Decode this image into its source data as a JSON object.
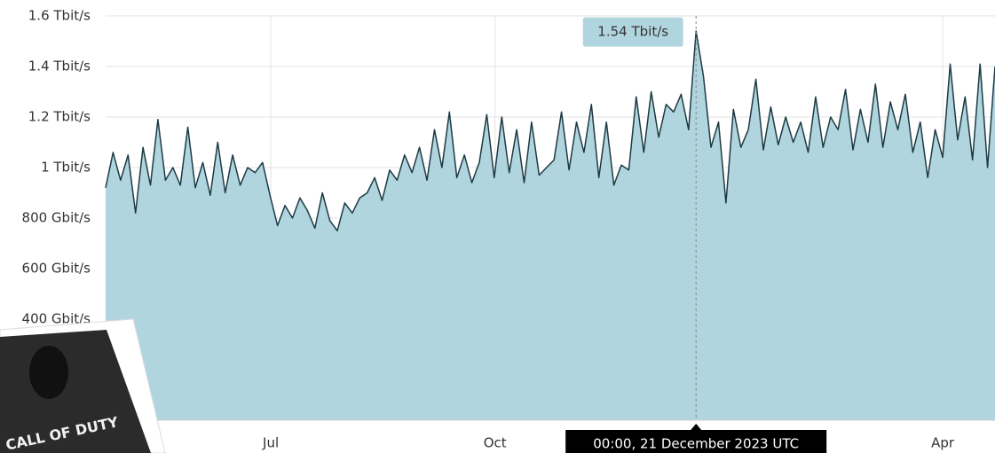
{
  "chart_data": {
    "type": "area",
    "badge": "CALL OF DUTY",
    "tooltip_date": "00:00, 21 December 2023 UTC",
    "series": [
      {
        "color": "#1d3a44",
        "fill": "#b1d5de",
        "values": [
          920,
          1060,
          950,
          1050,
          820,
          1080,
          930,
          1190,
          950,
          1000,
          930,
          1160,
          920,
          1020,
          890,
          1100,
          900,
          1050,
          930,
          1000,
          980,
          1020,
          890,
          770,
          850,
          800,
          880,
          830,
          760,
          900,
          790,
          750,
          860,
          820,
          880,
          900,
          960,
          870,
          990,
          950,
          1050,
          980,
          1080,
          950,
          1150,
          1000,
          1220,
          960,
          1050,
          940,
          1020,
          1210,
          960,
          1200,
          980,
          1150,
          940,
          1180,
          970,
          1000,
          1030,
          1220,
          990,
          1180,
          1060,
          1250,
          960,
          1180,
          930,
          1010,
          990,
          1280,
          1060,
          1300,
          1120,
          1250,
          1220,
          1290,
          1150,
          1540,
          1360,
          1080,
          1180,
          860,
          1230,
          1080,
          1150,
          1350,
          1070,
          1240,
          1090,
          1200,
          1100,
          1180,
          1060,
          1280,
          1080,
          1200,
          1150,
          1310,
          1070,
          1230,
          1100,
          1330,
          1080,
          1260,
          1150,
          1290,
          1060,
          1180,
          960,
          1150,
          1040,
          1410,
          1110,
          1280,
          1030,
          1410,
          1000,
          1400
        ],
        "value_labels": [
          null,
          null,
          null,
          null,
          null,
          null,
          null,
          null,
          null,
          null,
          null,
          null,
          null,
          null,
          null,
          null,
          null,
          null,
          null,
          null,
          null,
          null,
          null,
          null,
          null,
          null,
          null,
          null,
          null,
          null,
          null,
          null,
          null,
          null,
          null,
          null,
          null,
          null,
          null,
          null,
          null,
          null,
          null,
          null,
          null,
          null,
          null,
          null,
          null,
          null,
          null,
          null,
          null,
          null,
          null,
          null,
          null,
          null,
          null,
          null,
          null,
          null,
          null,
          null,
          null,
          null,
          null,
          null,
          null,
          null,
          null,
          null,
          null,
          null,
          null,
          null,
          null,
          null,
          null,
          "1.54 Tbit/s",
          null,
          null,
          null,
          null,
          null,
          null,
          null,
          null,
          null,
          null,
          null,
          null,
          null,
          null,
          null,
          null,
          null,
          null,
          null,
          null,
          null,
          null,
          null,
          null,
          null,
          null,
          null,
          null,
          null,
          null,
          null,
          null,
          null,
          null,
          null,
          null,
          null,
          null,
          null,
          null
        ]
      }
    ],
    "xlim": [
      0,
      119
    ],
    "xticks": [
      {
        "value": 22.1,
        "label": "Jul"
      },
      {
        "value": 52.1,
        "label": "Oct"
      },
      {
        "value": 112,
        "label": "Apr"
      }
    ],
    "ylim": [
      0,
      1600
    ],
    "yticks": [
      {
        "value": 400,
        "label": "400 Gbit/s"
      },
      {
        "value": 600,
        "label": "600 Gbit/s"
      },
      {
        "value": 800,
        "label": "800 Gbit/s"
      },
      {
        "value": 1000,
        "label": "1 Tbit/s"
      },
      {
        "value": 1200,
        "label": "1.2 Tbit/s"
      },
      {
        "value": 1400,
        "label": "1.4 Tbit/s"
      },
      {
        "value": 1600,
        "label": "1.6 Tbit/s"
      }
    ],
    "grid": true
  }
}
